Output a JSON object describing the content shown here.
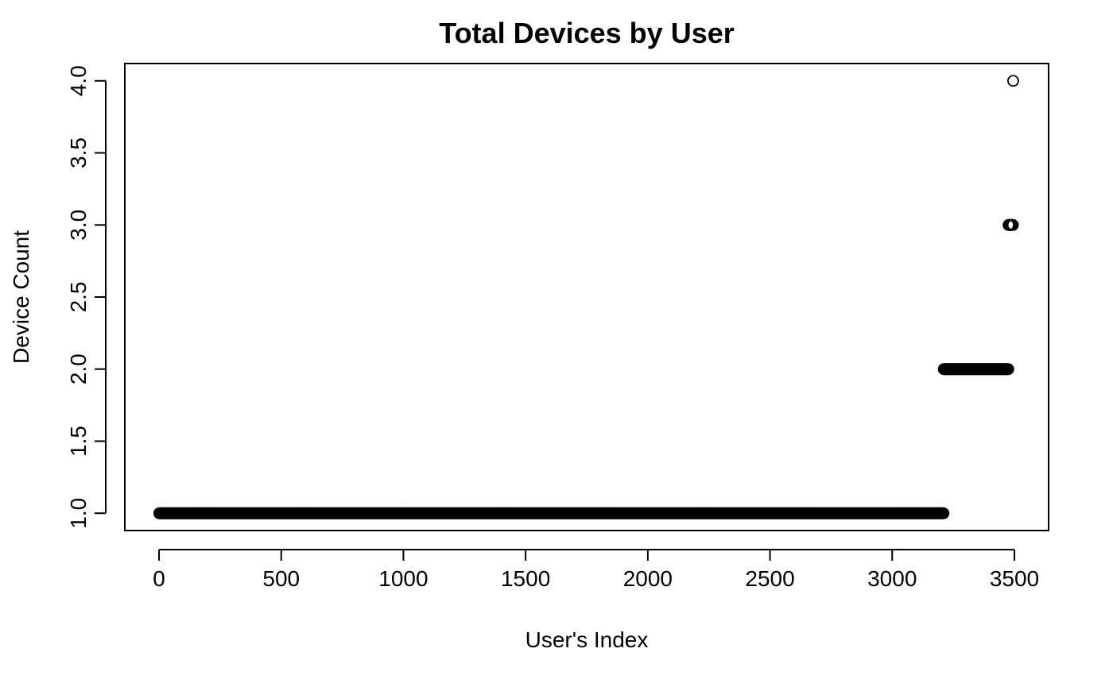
{
  "chart_data": {
    "type": "scatter",
    "title": "Total Devices by User",
    "xlabel": "User's Index",
    "ylabel": "Device Count",
    "xlim": [
      -140,
      3640
    ],
    "ylim": [
      0.88,
      4.12
    ],
    "x_ticks": [
      0,
      500,
      1000,
      1500,
      2000,
      2500,
      3000,
      3500
    ],
    "x_tick_labels": [
      "0",
      "500",
      "1000",
      "1500",
      "2000",
      "2500",
      "3000",
      "3500"
    ],
    "y_ticks": [
      1.0,
      1.5,
      2.0,
      2.5,
      3.0,
      3.5,
      4.0
    ],
    "y_tick_labels": [
      "1.0",
      "1.5",
      "2.0",
      "2.5",
      "3.0",
      "3.5",
      "4.0"
    ],
    "marker": "open-circle",
    "grid": false,
    "legend": "none",
    "series_runs": [
      {
        "device_count": 1,
        "index_from": 1,
        "index_to": 3210
      },
      {
        "device_count": 2,
        "index_from": 3211,
        "index_to": 3475
      },
      {
        "device_count": 3,
        "index_from": 3476,
        "index_to": 3494
      },
      {
        "device_count": 4,
        "index_from": 3495,
        "index_to": 3495
      }
    ],
    "colors": {
      "points": "#000000",
      "axes": "#000000",
      "background": "#ffffff"
    }
  }
}
